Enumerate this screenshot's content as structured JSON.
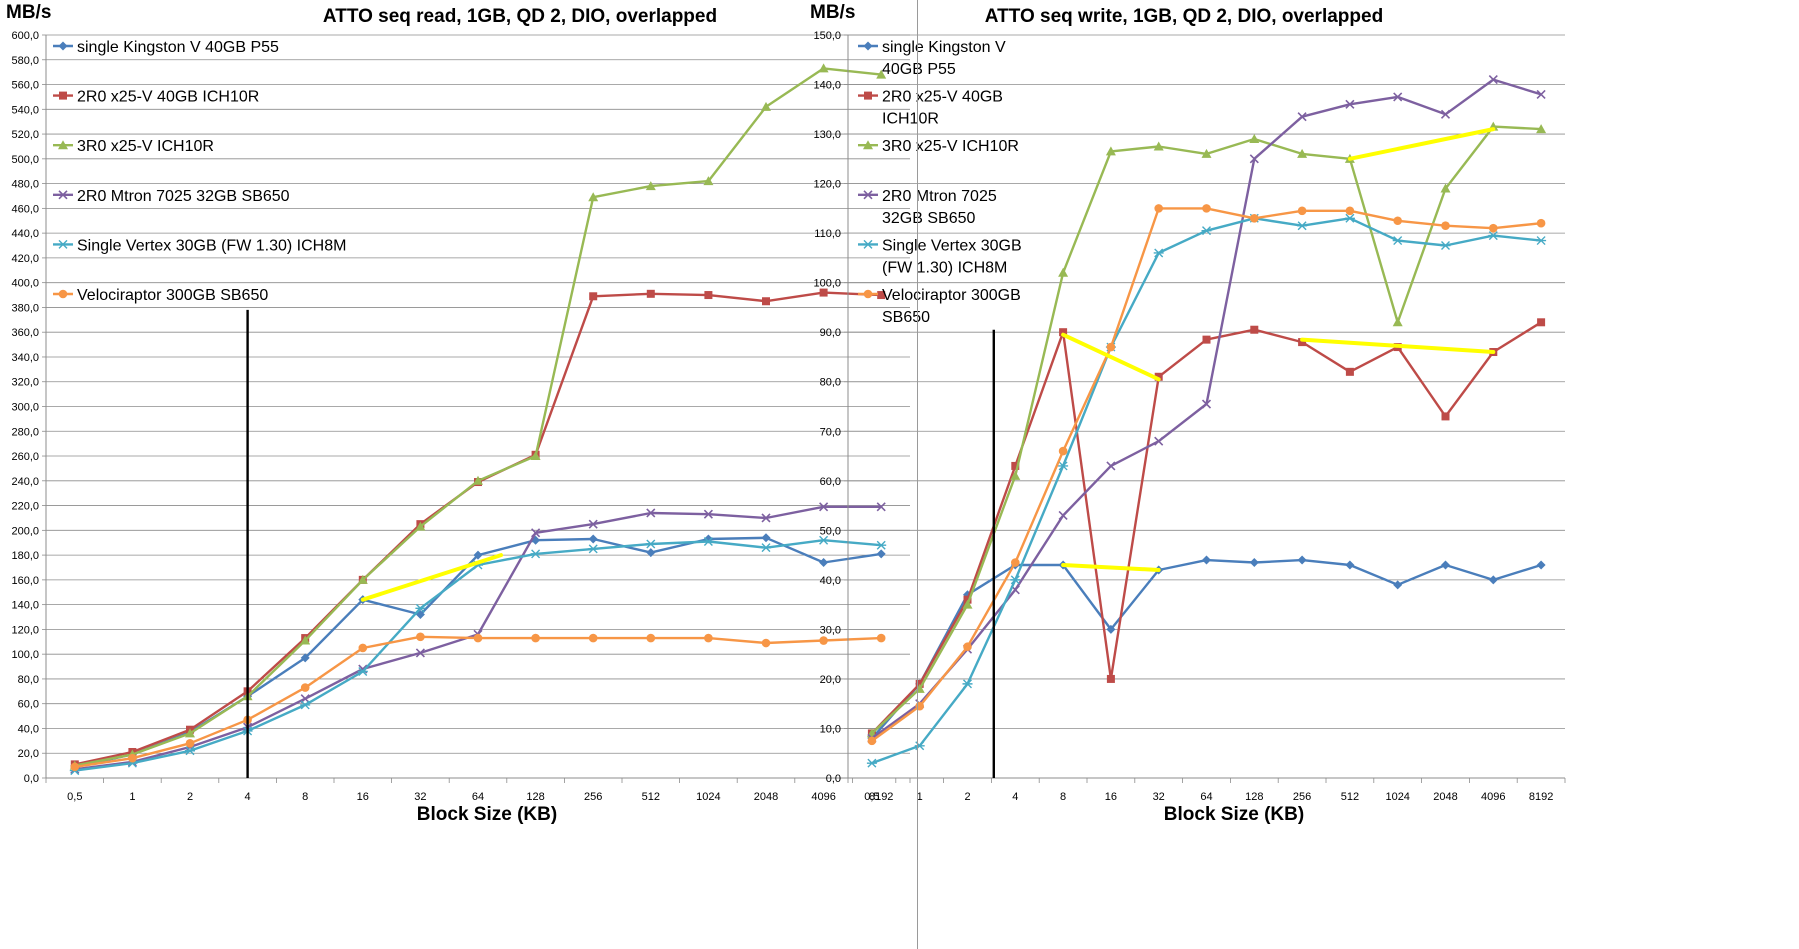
{
  "chart_data": [
    {
      "type": "line",
      "title": "ATTO seq read, 1GB, QD 2, DIO, overlapped",
      "ylabel": "MB/s",
      "xlabel": "Block Size (KB)",
      "categories": [
        "0,5",
        "1",
        "2",
        "4",
        "8",
        "16",
        "32",
        "64",
        "128",
        "256",
        "512",
        "1024",
        "2048",
        "4096",
        "8192"
      ],
      "ylim": [
        0,
        600
      ],
      "ystep": 20,
      "y_tick_labels": [
        "0,0",
        "20,0",
        "40,0",
        "60,0",
        "80,0",
        "100,0",
        "120,0",
        "140,0",
        "160,0",
        "180,0",
        "200,0",
        "220,0",
        "240,0",
        "260,0",
        "280,0",
        "300,0",
        "320,0",
        "340,0",
        "360,0",
        "380,0",
        "400,0",
        "420,0",
        "440,0",
        "460,0",
        "480,0",
        "500,0",
        "520,0",
        "540,0",
        "560,0",
        "580,0",
        "600,0"
      ],
      "legend_position": "top-left",
      "grid": "horizontal",
      "series": [
        {
          "name": "single Kingston V 40GB P55",
          "color": "#4a7ebb",
          "marker": "diamond",
          "values": [
            9,
            19,
            37,
            66,
            97,
            144,
            132,
            180,
            192,
            193,
            182,
            193,
            194,
            174,
            181
          ]
        },
        {
          "name": "2R0 x25-V 40GB ICH10R",
          "color": "#be4b48",
          "marker": "square",
          "values": [
            11,
            21,
            39,
            70,
            113,
            160,
            205,
            239,
            261,
            389,
            391,
            390,
            385,
            392,
            390
          ]
        },
        {
          "name": "3R0 x25-V ICH10R",
          "color": "#98b954",
          "marker": "triangle",
          "values": [
            10,
            19,
            36,
            66,
            111,
            160,
            203,
            240,
            260,
            469,
            478,
            482,
            542,
            573,
            568
          ]
        },
        {
          "name": "2R0 Mtron 7025 32GB SB650",
          "color": "#7d60a0",
          "marker": "x",
          "values": [
            7,
            13,
            25,
            41,
            64,
            88,
            101,
            116,
            198,
            205,
            214,
            213,
            210,
            219,
            219
          ]
        },
        {
          "name": "Single Vertex 30GB (FW 1.30) ICH8M",
          "color": "#46aac5",
          "marker": "star",
          "values": [
            6,
            12,
            22,
            38,
            59,
            86,
            137,
            172,
            181,
            185,
            189,
            191,
            186,
            192,
            188
          ]
        },
        {
          "name": "Velociraptor 300GB SB650",
          "color": "#f79646",
          "marker": "circle",
          "values": [
            9,
            16,
            28,
            47,
            73,
            105,
            114,
            113,
            113,
            113,
            113,
            113,
            109,
            111,
            113
          ]
        }
      ],
      "annotations": {
        "highlight_color": "#ffff00",
        "highlight_segments": [
          [
            [
              5,
              144
            ],
            [
              7.4,
              180
            ]
          ]
        ],
        "vertical_marker_x": 3,
        "vertical_marker_top": 378
      }
    },
    {
      "type": "line",
      "title": "ATTO seq write, 1GB, QD 2, DIO, overlapped",
      "ylabel": "MB/s",
      "xlabel": "Block Size (KB)",
      "categories": [
        "0,5",
        "1",
        "2",
        "4",
        "8",
        "16",
        "32",
        "64",
        "128",
        "256",
        "512",
        "1024",
        "2048",
        "4096",
        "8192"
      ],
      "ylim": [
        0,
        150
      ],
      "ystep": 10,
      "y_tick_labels": [
        "0,0",
        "10,0",
        "20,0",
        "30,0",
        "40,0",
        "50,0",
        "60,0",
        "70,0",
        "80,0",
        "90,0",
        "100,0",
        "110,0",
        "120,0",
        "130,0",
        "140,0",
        "150,0"
      ],
      "legend_position": "top-left",
      "grid": "horizontal",
      "series": [
        {
          "name": "single Kingston V 40GB P55",
          "color": "#4a7ebb",
          "marker": "diamond",
          "values": [
            8,
            19,
            37,
            43,
            43,
            30,
            42,
            44,
            43.5,
            44,
            43,
            39,
            43,
            40,
            43
          ]
        },
        {
          "name": "2R0 x25-V 40GB ICH10R",
          "color": "#be4b48",
          "marker": "square",
          "values": [
            9,
            19,
            36,
            63,
            90,
            20,
            81,
            88.5,
            90.5,
            88,
            82,
            87,
            73,
            86,
            92
          ]
        },
        {
          "name": "3R0 x25-V ICH10R",
          "color": "#98b954",
          "marker": "triangle",
          "values": [
            9,
            18,
            35,
            61,
            102,
            126.5,
            127.5,
            126,
            129,
            126,
            125,
            92,
            119,
            131.5,
            131
          ]
        },
        {
          "name": "2R0 Mtron 7025 32GB SB650",
          "color": "#7d60a0",
          "marker": "x",
          "values": [
            8,
            15,
            26,
            38,
            53,
            63,
            68,
            75.5,
            125,
            133.5,
            136,
            137.5,
            134,
            141,
            138
          ]
        },
        {
          "name": "Single Vertex 30GB (FW 1.30) ICH8M",
          "color": "#46aac5",
          "marker": "star",
          "values": [
            3,
            6.5,
            19,
            40,
            63,
            87,
            106,
            110.5,
            113,
            111.5,
            113,
            108.5,
            107.5,
            109.5,
            108.5
          ]
        },
        {
          "name": "Velociraptor 300GB SB650",
          "color": "#f79646",
          "marker": "circle",
          "values": [
            7.5,
            14.5,
            26.5,
            43.5,
            66,
            87,
            115,
            115,
            113,
            114.5,
            114.5,
            112.5,
            111.5,
            111,
            112
          ]
        }
      ],
      "annotations": {
        "highlight_color": "#ffff00",
        "highlight_segments": [
          [
            [
              4,
              89.5
            ],
            [
              6,
              80.5
            ]
          ],
          [
            [
              4,
              43
            ],
            [
              6,
              42
            ]
          ],
          [
            [
              9,
              88.5
            ],
            [
              13,
              86
            ]
          ],
          [
            [
              10,
              125
            ],
            [
              13,
              131
            ]
          ]
        ],
        "vertical_marker_x": 2.55,
        "vertical_marker_top": 90.5
      }
    }
  ]
}
